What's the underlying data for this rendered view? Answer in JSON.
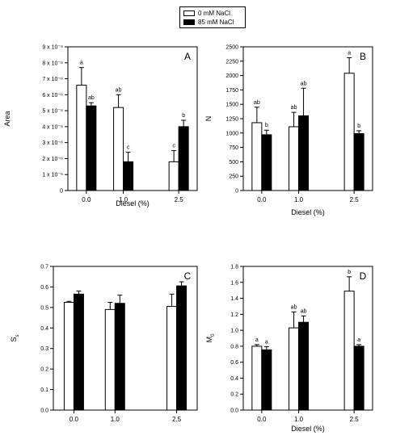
{
  "legend": {
    "items": [
      {
        "label": "0 mM NaCl",
        "color": "#ffffff"
      },
      {
        "label": "85 mM NaCl",
        "color": "#000000"
      }
    ]
  },
  "colors": {
    "control": "#ffffff",
    "salt": "#000000",
    "axis": "#000000"
  },
  "chart_data": [
    {
      "type": "bar",
      "panel": "A",
      "xlabel": "Diesel (%)",
      "ylabel": "Area",
      "ylim": [
        0,
        9e-06
      ],
      "yticks": [
        0,
        1e-06,
        2e-06,
        3e-06,
        4e-06,
        5e-06,
        6e-06,
        7e-06,
        8e-06,
        9e-06
      ],
      "ytick_labels": [
        "0",
        "1 x 10⁻⁶",
        "2 x 10⁻⁶",
        "3 x 10⁻⁶",
        "4 x 10⁻⁶",
        "5 x 10⁻⁶",
        "6 x 10⁻⁶",
        "7 x 10⁻⁶",
        "8 x 10⁻⁶",
        "9 x 10⁻⁶"
      ],
      "categories": [
        "0.0",
        "1.0",
        "2.5"
      ],
      "x": [
        0,
        1,
        2.5
      ],
      "xlim": [
        -0.5,
        3.0
      ],
      "series": [
        {
          "name": "0 mM NaCl",
          "values": [
            6.6e-06,
            5.2e-06,
            1.8e-06
          ],
          "errors": [
            1.1e-06,
            8e-07,
            7e-07
          ],
          "letters": [
            "a",
            "ab",
            "c"
          ]
        },
        {
          "name": "85 mM NaCl",
          "values": [
            5.3e-06,
            1.8e-06,
            4e-06
          ],
          "errors": [
            2e-07,
            6e-07,
            4e-07
          ],
          "letters": [
            "ab",
            "c",
            "b"
          ]
        }
      ]
    },
    {
      "type": "bar",
      "panel": "B",
      "xlabel": "Diesel (%)",
      "ylabel": "N",
      "ylim": [
        0,
        2500
      ],
      "yticks": [
        0,
        250,
        500,
        750,
        1000,
        1250,
        1500,
        1750,
        2000,
        2250,
        2500
      ],
      "ytick_labels": [
        "0",
        "250",
        "500",
        "750",
        "1000",
        "1250",
        "1500",
        "1750",
        "2000",
        "2250",
        "2500"
      ],
      "categories": [
        "0.0",
        "1.0",
        "2.5"
      ],
      "x": [
        0,
        1,
        2.5
      ],
      "xlim": [
        -0.5,
        3.0
      ],
      "series": [
        {
          "name": "0 mM NaCl",
          "values": [
            1180,
            1110,
            2040
          ],
          "errors": [
            270,
            250,
            270
          ],
          "letters": [
            "ab",
            "ab",
            "a"
          ]
        },
        {
          "name": "85 mM NaCl",
          "values": [
            970,
            1300,
            990
          ],
          "errors": [
            80,
            480,
            50
          ],
          "letters": [
            "b",
            "ab",
            "b"
          ]
        }
      ]
    },
    {
      "type": "bar",
      "panel": "C",
      "xlabel": "",
      "ylabel": "S",
      "ylabel_sub": "s",
      "ylim": [
        0,
        0.7
      ],
      "yticks": [
        0,
        0.1,
        0.2,
        0.3,
        0.4,
        0.5,
        0.6,
        0.7
      ],
      "ytick_labels": [
        "0.0",
        "0.1",
        "0.2",
        "0.3",
        "0.4",
        "0.5",
        "0.6",
        "0.7"
      ],
      "categories": [
        "0.0",
        "1.0",
        "2.5"
      ],
      "x": [
        0,
        1,
        2.5
      ],
      "xlim": [
        -0.5,
        3.0
      ],
      "series": [
        {
          "name": "0 mM NaCl",
          "values": [
            0.525,
            0.49,
            0.505
          ],
          "errors": [
            0.005,
            0.035,
            0.06
          ],
          "letters": [
            "",
            "",
            ""
          ]
        },
        {
          "name": "85 mM NaCl",
          "values": [
            0.565,
            0.52,
            0.605
          ],
          "errors": [
            0.015,
            0.04,
            0.02
          ],
          "letters": [
            "",
            "",
            ""
          ]
        }
      ]
    },
    {
      "type": "bar",
      "panel": "D",
      "xlabel": "Diesel (%)",
      "ylabel": "M",
      "ylabel_sub": "0",
      "ylim": [
        0,
        1.8
      ],
      "yticks": [
        0,
        0.2,
        0.4,
        0.6,
        0.8,
        1.0,
        1.2,
        1.4,
        1.6,
        1.8
      ],
      "ytick_labels": [
        "0.0",
        "0.2",
        "0.4",
        "0.6",
        "0.8",
        "1.0",
        "1.2",
        "1.4",
        "1.6",
        "1.8"
      ],
      "categories": [
        "0.0",
        "1.0",
        "2.5"
      ],
      "x": [
        0,
        1,
        2.5
      ],
      "xlim": [
        -0.5,
        3.0
      ],
      "series": [
        {
          "name": "0 mM NaCl",
          "values": [
            0.8,
            1.03,
            1.49
          ],
          "errors": [
            0.02,
            0.2,
            0.18
          ],
          "letters": [
            "a",
            "ab",
            "b"
          ]
        },
        {
          "name": "85 mM NaCl",
          "values": [
            0.755,
            1.1,
            0.8
          ],
          "errors": [
            0.04,
            0.08,
            0.02
          ],
          "letters": [
            "a",
            "ab",
            "a"
          ]
        }
      ]
    }
  ]
}
